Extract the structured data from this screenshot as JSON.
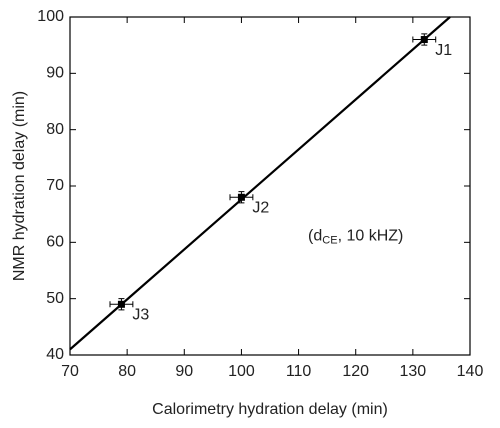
{
  "chart_data": {
    "type": "scatter",
    "xlabel": "Calorimetry hydration delay (min)",
    "ylabel": "NMR hydration delay (min)",
    "xlim": [
      70,
      140
    ],
    "xticks": [
      70,
      80,
      90,
      100,
      110,
      120,
      130,
      140
    ],
    "ylim": [
      40,
      100
    ],
    "yticks": [
      40,
      50,
      60,
      70,
      80,
      90,
      100
    ],
    "series": [
      {
        "color": "#000000",
        "x": [
          132,
          100,
          79
        ],
        "values": [
          96,
          68,
          49
        ],
        "xerr": [
          2,
          2,
          2
        ],
        "yerr": [
          1,
          1,
          1
        ],
        "labels": [
          "J1",
          "J2",
          "J3"
        ]
      }
    ],
    "fit_line": {
      "color": "#000000",
      "x": [
        70,
        136.5
      ],
      "values": [
        41,
        100
      ]
    },
    "annotation": {
      "parts": [
        "(d",
        "CE",
        ", 10 kHZ)"
      ],
      "x": 120,
      "y": 61
    }
  }
}
